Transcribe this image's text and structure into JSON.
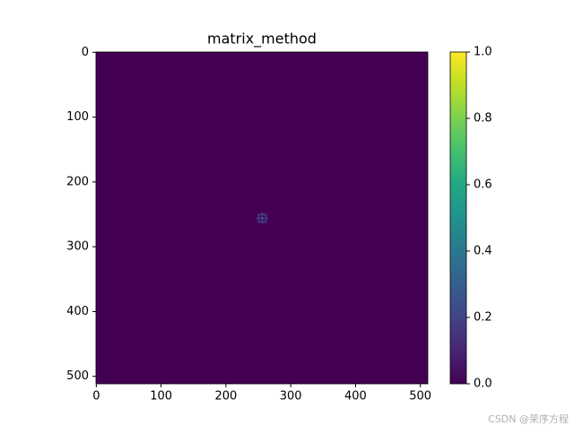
{
  "chart_data": {
    "type": "image",
    "title": "matrix_method",
    "xlim": [
      -0.5,
      511.5
    ],
    "xticks": [
      0,
      100,
      200,
      300,
      400,
      500
    ],
    "ylim": [
      511.5,
      -0.5
    ],
    "yticks": [
      0,
      100,
      200,
      300,
      400,
      500
    ],
    "background_value": 0,
    "cells": [
      {
        "x": 256,
        "y": 256,
        "value": 0.3
      },
      {
        "x": 250,
        "y": 256,
        "value": 0.2
      },
      {
        "x": 262,
        "y": 256,
        "value": 0.2
      },
      {
        "x": 256,
        "y": 250,
        "value": 0.2
      },
      {
        "x": 256,
        "y": 262,
        "value": 0.2
      },
      {
        "x": 251,
        "y": 251,
        "value": 0.15
      },
      {
        "x": 261,
        "y": 251,
        "value": 0.15
      },
      {
        "x": 251,
        "y": 261,
        "value": 0.15
      },
      {
        "x": 261,
        "y": 261,
        "value": 0.15
      }
    ],
    "clim": [
      0,
      1
    ],
    "cticks": [
      0.0,
      0.2,
      0.4,
      0.6,
      0.8,
      1.0
    ],
    "colormap": [
      "#440154",
      "#482475",
      "#414487",
      "#355f8d",
      "#2a788e",
      "#21918c",
      "#22a884",
      "#44bf70",
      "#7ad151",
      "#bddf26",
      "#fde725"
    ]
  },
  "watermark": "CSDN @荣序方程"
}
